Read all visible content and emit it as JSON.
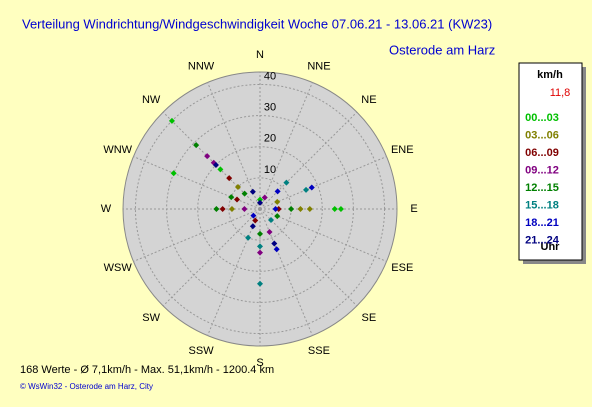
{
  "chart_data": {
    "type": "polar-scatter",
    "title": "Verteilung Windrichtung/Windgeschwindigkeit  Woche 07.06.21 - 13.06.21 (KW23)",
    "subtitle": "Osterode am Harz",
    "legend_unit": "km/h",
    "current_value": "11,8",
    "legend_footer": "Uhr",
    "footer": "168 Werte   -   Ø 7,1km/h   -   Max. 51,1km/h   -   1200.4 km",
    "credit": "© WsWin32   -   Osterode am Harz, City",
    "xlim": [
      0,
      360
    ],
    "xticks": [
      {
        "value": 0,
        "label": "N"
      },
      {
        "value": 22.5,
        "label": "NNE"
      },
      {
        "value": 45,
        "label": "NE"
      },
      {
        "value": 67.5,
        "label": "ENE"
      },
      {
        "value": 90,
        "label": "E"
      },
      {
        "value": 112.5,
        "label": "ESE"
      },
      {
        "value": 135,
        "label": "SE"
      },
      {
        "value": 157.5,
        "label": "SSE"
      },
      {
        "value": 180,
        "label": "S"
      },
      {
        "value": 202.5,
        "label": "SSW"
      },
      {
        "value": 225,
        "label": "SW"
      },
      {
        "value": 247.5,
        "label": "WSW"
      },
      {
        "value": 270,
        "label": "W"
      },
      {
        "value": 292.5,
        "label": "WNW"
      },
      {
        "value": 315,
        "label": "NW"
      },
      {
        "value": 337.5,
        "label": "NNW"
      }
    ],
    "ylim": [
      0,
      44
    ],
    "yticks": [
      10,
      20,
      30,
      40
    ],
    "series": [
      {
        "name": "00...03",
        "color": "#00c000",
        "x": [
          315,
          315,
          90,
          90,
          292.5,
          0
        ],
        "values": [
          40,
          18,
          26,
          24,
          30,
          3
        ]
      },
      {
        "name": "03...06",
        "color": "#808000",
        "x": [
          90,
          90,
          270,
          315,
          67.5
        ],
        "values": [
          16,
          13,
          9,
          10,
          6
        ]
      },
      {
        "name": "06...09",
        "color": "#800000",
        "x": [
          270,
          315,
          90,
          292.5,
          202.5
        ],
        "values": [
          12,
          14,
          6,
          8,
          4
        ]
      },
      {
        "name": "09...12",
        "color": "#800080",
        "x": [
          315,
          315,
          180,
          157.5,
          270,
          22.5
        ],
        "values": [
          24,
          21,
          14,
          8,
          5,
          4
        ]
      },
      {
        "name": "12...15",
        "color": "#008000",
        "x": [
          315,
          270,
          292.5,
          90,
          180,
          112.5,
          315
        ],
        "values": [
          29,
          14,
          10,
          10,
          8,
          6,
          7
        ]
      },
      {
        "name": "15...18",
        "color": "#008080",
        "x": [
          180,
          180,
          45,
          67.5,
          202.5,
          135
        ],
        "values": [
          24,
          12,
          12,
          16,
          10,
          5
        ]
      },
      {
        "name": "18...21",
        "color": "#0000c0",
        "x": [
          67.5,
          157.5,
          45,
          90,
          225
        ],
        "values": [
          18,
          14,
          8,
          5,
          3
        ]
      },
      {
        "name": "21...24",
        "color": "#000080",
        "x": [
          315,
          337.5,
          157.5,
          202.5,
          0
        ],
        "values": [
          20,
          6,
          12,
          6,
          2
        ]
      }
    ]
  }
}
